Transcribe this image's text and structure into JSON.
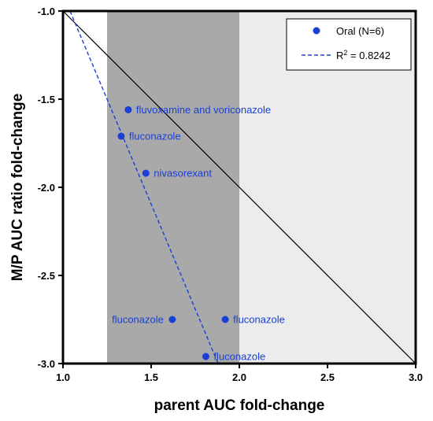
{
  "chart_data": {
    "type": "scatter",
    "xlabel": "parent AUC fold-change",
    "ylabel": "M/P AUC ratio fold-change",
    "xlim": [
      1.0,
      3.0
    ],
    "ylim": [
      -3.0,
      -1.0
    ],
    "x_ticks": [
      "1.0",
      "1.5",
      "2.0",
      "2.5",
      "3.0"
    ],
    "y_ticks": [
      "-1.0",
      "-1.5",
      "-2.0",
      "-2.5",
      "-3.0"
    ],
    "grid": false,
    "shaded_regions": [
      {
        "x_range": [
          1.25,
          2.0
        ],
        "color": "#a9a9a9"
      },
      {
        "x_range": [
          2.0,
          3.0
        ],
        "color": "#ececec"
      }
    ],
    "reference_line": {
      "from": [
        1.0,
        -1.0
      ],
      "to": [
        3.0,
        -3.0
      ],
      "color": "#000000"
    },
    "series": [
      {
        "name": "Oral (N=6)",
        "color": "#1a3fd6",
        "points": [
          {
            "x": 1.37,
            "y": -1.56,
            "label": "fluvoxamine and voriconazole"
          },
          {
            "x": 1.33,
            "y": -1.71,
            "label": "fluconazole"
          },
          {
            "x": 1.47,
            "y": -1.92,
            "label": "nivasorexant"
          },
          {
            "x": 1.62,
            "y": -2.75,
            "label": "fluconazole"
          },
          {
            "x": 1.92,
            "y": -2.75,
            "label": "fluconazole"
          },
          {
            "x": 1.81,
            "y": -2.96,
            "label": "fluconazole"
          }
        ]
      }
    ],
    "regression_line": {
      "name_prefix": "R",
      "name_superscript": "2",
      "name_suffix": " = 0.8242",
      "from": [
        1.04,
        -1.0
      ],
      "to": [
        1.88,
        -3.0
      ],
      "color": "#1a3fd6",
      "style": "dashed"
    },
    "legend_position": "top-right"
  }
}
